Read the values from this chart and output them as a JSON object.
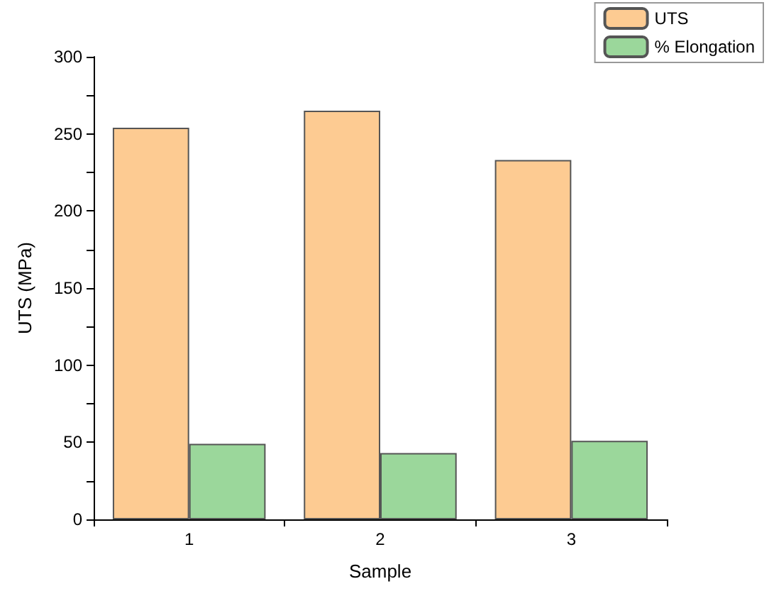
{
  "chart_data": {
    "type": "bar",
    "xlabel": "Sample",
    "ylabel": "UTS (MPa)",
    "categories": [
      "1",
      "2",
      "3"
    ],
    "series": [
      {
        "name": "UTS",
        "color": "#fdcb92",
        "values": [
          254,
          265,
          233
        ]
      },
      {
        "name": "% Elongation",
        "color": "#9bd79b",
        "values": [
          49,
          43,
          51
        ]
      }
    ],
    "ylim": [
      0,
      300
    ],
    "yticks": [
      0,
      {
        "value": 25,
        "label": null
      },
      50,
      {
        "value": 75,
        "label": null
      },
      100,
      {
        "value": 125,
        "label": null
      },
      150,
      {
        "value": 175,
        "label": null
      },
      200,
      {
        "value": 225,
        "label": null
      },
      250,
      {
        "value": 275,
        "label": null
      },
      300
    ],
    "grid": false,
    "legend": "top right"
  }
}
